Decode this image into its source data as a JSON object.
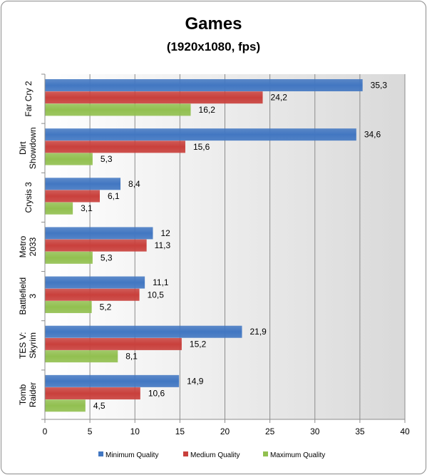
{
  "chart_data": {
    "type": "bar",
    "orientation": "horizontal",
    "title": "Games",
    "subtitle": "(1920x1080, fps)",
    "categories": [
      [
        "Far Cry 2"
      ],
      [
        "Dirt",
        "Showdown"
      ],
      [
        "Crysis 3"
      ],
      [
        "Metro",
        "2033"
      ],
      [
        "Battlefield",
        "3"
      ],
      [
        "TES V:",
        "Skyrim"
      ],
      [
        "Tomb",
        "Raider"
      ]
    ],
    "series": [
      {
        "name": "Minimum Quality",
        "values": [
          35.3,
          34.6,
          8.4,
          12,
          11.1,
          21.9,
          14.9
        ],
        "labels": [
          "35,3",
          "34,6",
          "8,4",
          "12",
          "11,1",
          "21,9",
          "14,9"
        ],
        "color": "#4277c2"
      },
      {
        "name": "Medium Quality",
        "values": [
          24.2,
          15.6,
          6.1,
          11.3,
          10.5,
          15.2,
          10.6
        ],
        "labels": [
          "24,2",
          "15,6",
          "6,1",
          "11,3",
          "10,5",
          "15,2",
          "10,6"
        ],
        "color": "#c9403c"
      },
      {
        "name": "Maximum Quality",
        "values": [
          16.2,
          5.3,
          3.1,
          5.3,
          5.2,
          8.1,
          4.5
        ],
        "labels": [
          "16,2",
          "5,3",
          "3,1",
          "5,3",
          "5,2",
          "8,1",
          "4,5"
        ],
        "color": "#92c050"
      }
    ],
    "x_ticks": [
      "0",
      "5",
      "10",
      "15",
      "20",
      "25",
      "30",
      "35",
      "40"
    ],
    "xlim": [
      0,
      40
    ],
    "grid": true,
    "legend_position": "bottom"
  }
}
